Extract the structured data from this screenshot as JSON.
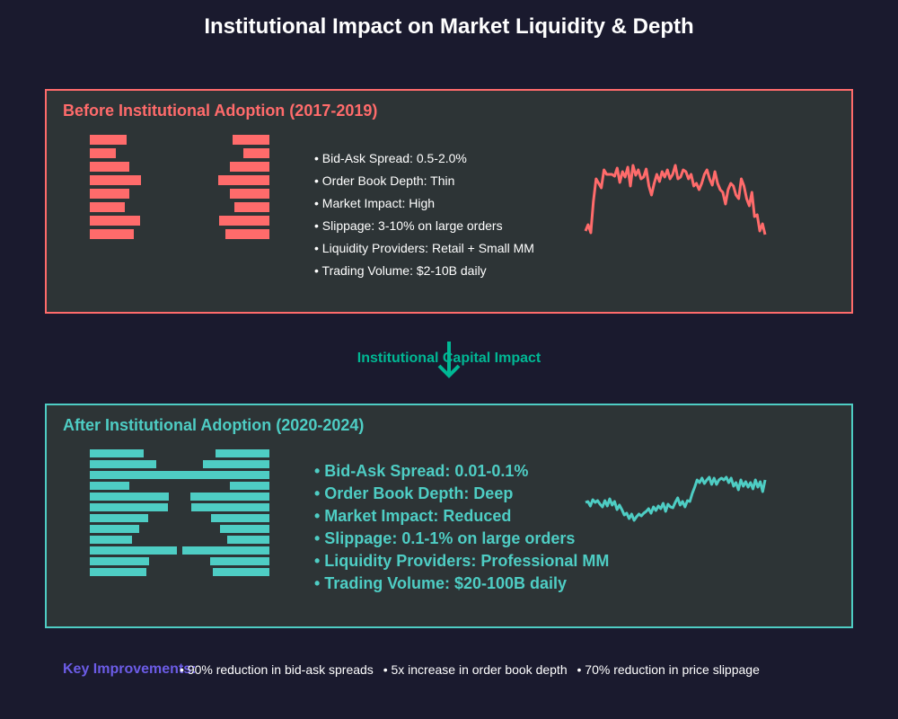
{
  "title": "Institutional Impact on Market Liquidity & Depth",
  "colors": {
    "background": "#1a1a2e",
    "panel": "#2d3436",
    "before_accent": "#ff6b6b",
    "after_accent": "#4ecdc4",
    "arrow": "#00b894",
    "key": "#6c5ce7"
  },
  "before": {
    "title": "Before Institutional Adoption (2017-2019)",
    "order_book": {
      "bids": [
        41,
        29,
        44,
        57,
        44,
        39,
        56,
        49
      ],
      "asks": [
        41,
        29,
        44,
        57,
        44,
        39,
        56,
        49
      ]
    },
    "metrics": [
      "• Bid-Ask Spread: 0.5-2.0%",
      "• Order Book Depth: Thin",
      "• Market Impact: High",
      "• Slippage: 3-10% on large orders",
      "• Liquidity Providers: Retail + Small MM",
      "• Trading Volume: $2-10B daily"
    ],
    "price_series": [
      12,
      19,
      10,
      45,
      70,
      65,
      60,
      80,
      75,
      75,
      75,
      73,
      82,
      66,
      78,
      72,
      83,
      62,
      85,
      74,
      80,
      70,
      72,
      81,
      62,
      52,
      65,
      75,
      67,
      78,
      72,
      80,
      70,
      75,
      85,
      70,
      72,
      80,
      78,
      70,
      75,
      62,
      65,
      58,
      65,
      75,
      80,
      70,
      63,
      78,
      65,
      58,
      55,
      42,
      58,
      65,
      62,
      52,
      48,
      70,
      62,
      48,
      40,
      55,
      28,
      30,
      12,
      20,
      8
    ]
  },
  "arrow_label": "Institutional Capital Impact",
  "after": {
    "title": "After Institutional Adoption (2020-2024)",
    "order_book": {
      "bids": [
        60,
        74,
        100,
        44,
        88,
        87,
        65,
        55,
        47,
        97,
        66,
        63
      ],
      "asks": [
        60,
        74,
        100,
        44,
        88,
        87,
        65,
        55,
        47,
        97,
        66,
        63
      ]
    },
    "metrics": [
      "• Bid-Ask Spread: 0.01-0.1%",
      "• Order Book Depth: Deep",
      "• Market Impact: Reduced",
      "• Slippage: 0.1-1% on large orders",
      "• Liquidity Providers: Professional MM",
      "• Trading Volume: $20-100B daily"
    ],
    "price_series": [
      30,
      31,
      26,
      33,
      30,
      32,
      28,
      25,
      32,
      26,
      34,
      27,
      31,
      22,
      27,
      22,
      16,
      18,
      12,
      17,
      10,
      14,
      17,
      15,
      18,
      20,
      23,
      18,
      25,
      21,
      26,
      23,
      29,
      20,
      28,
      25,
      24,
      30,
      35,
      27,
      31,
      25,
      32,
      31,
      40,
      47,
      55,
      52,
      57,
      51,
      55,
      58,
      50,
      57,
      50,
      55,
      57,
      55,
      58,
      52,
      57,
      48,
      52,
      44,
      55,
      48,
      53,
      47,
      52,
      45,
      55,
      47,
      53,
      42,
      55
    ]
  },
  "footer": {
    "label": "Key Improvements:",
    "items": [
      "• 90% reduction in bid-ask spreads",
      "• 5x increase in order book depth",
      "• 70% reduction in price slippage"
    ]
  }
}
